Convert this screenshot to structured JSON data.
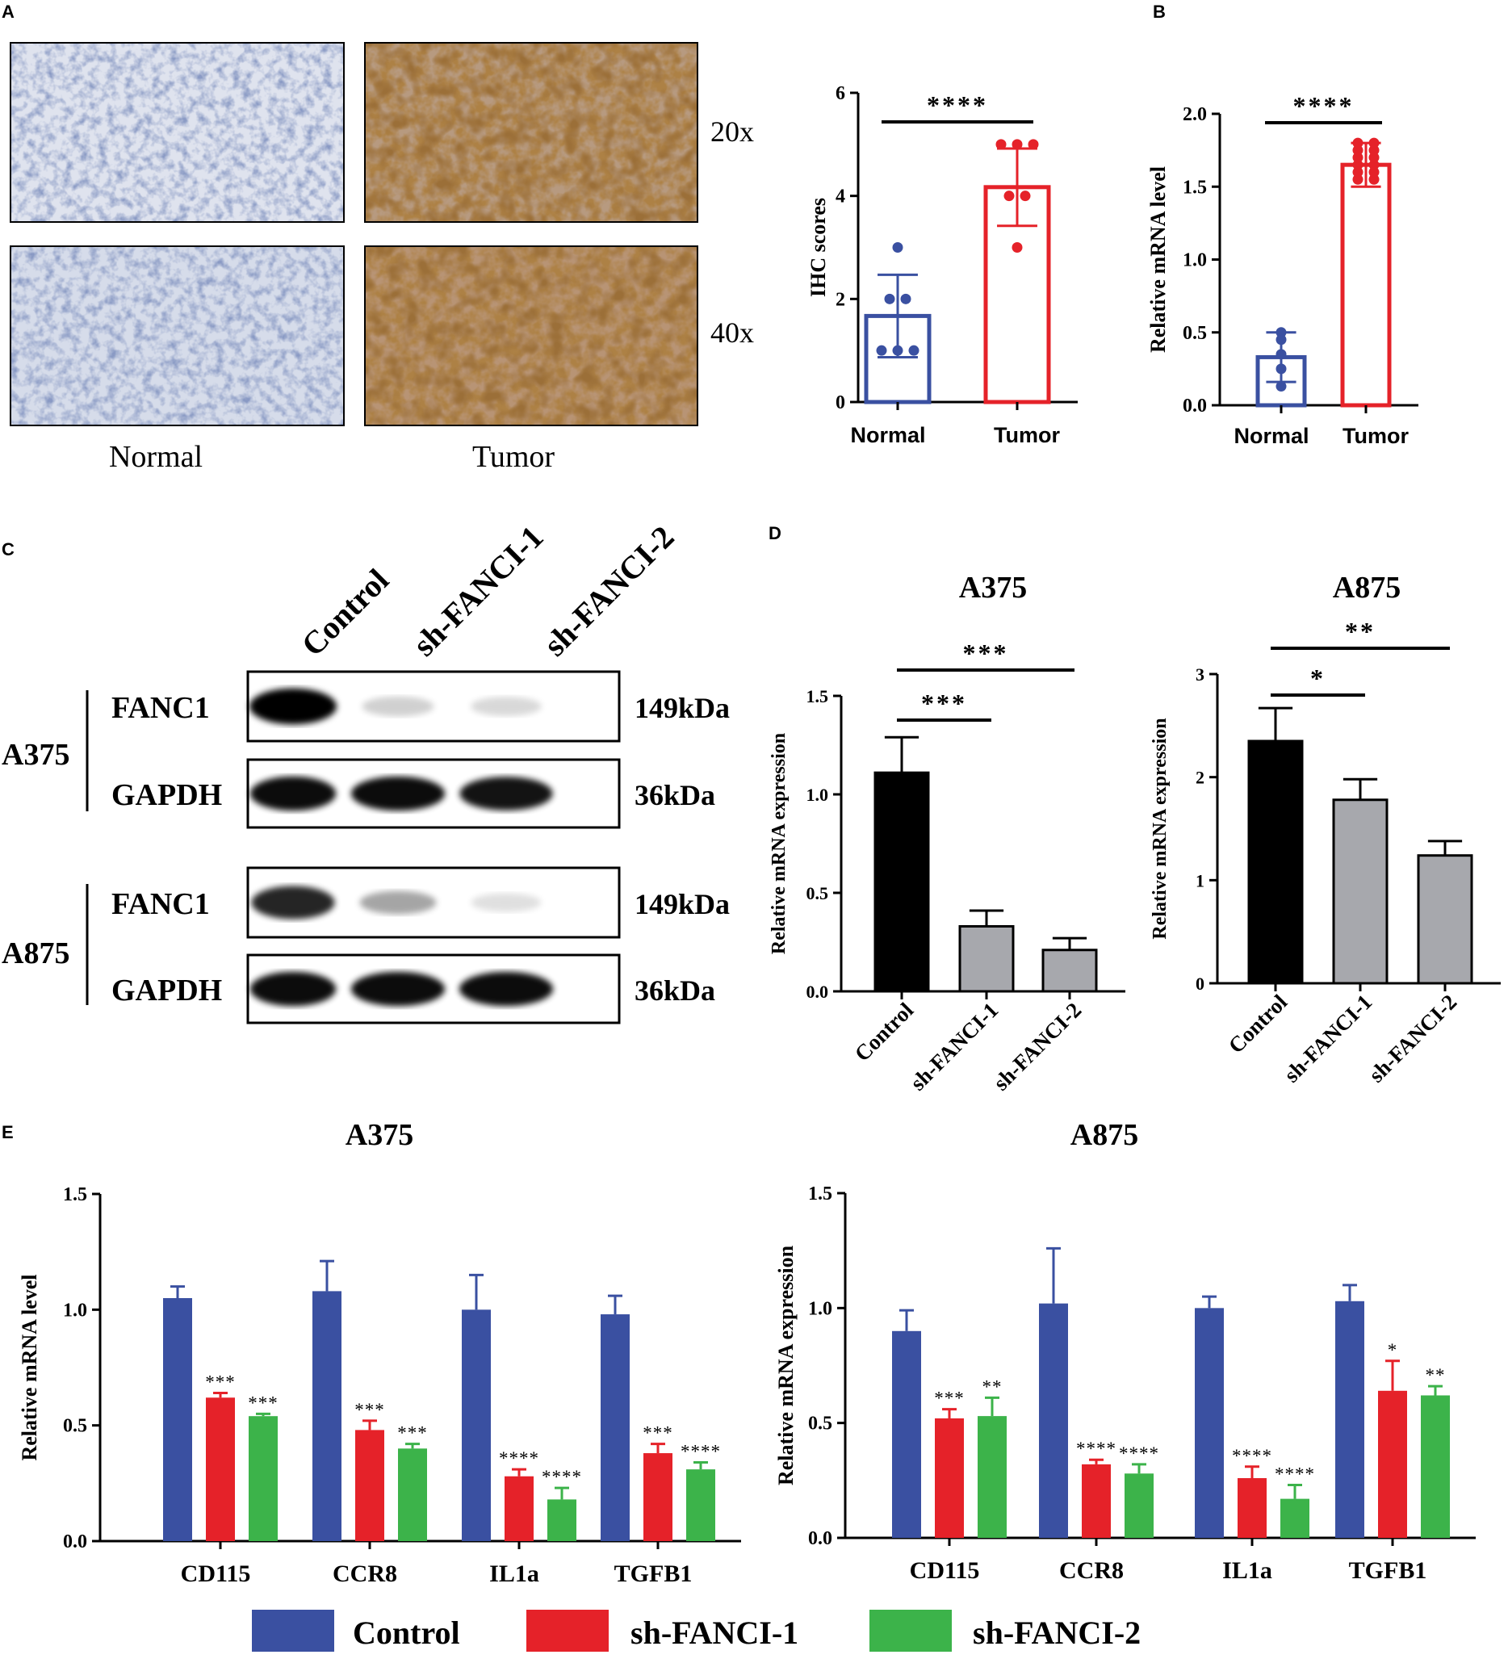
{
  "colors": {
    "blue": "#3a50a1",
    "red": "#e52229",
    "green": "#3cb34a",
    "black": "#000000",
    "grey": "#a7a8ad",
    "tissue_normal": "#c9cfe0",
    "tissue_tumor": "#8a5a2f"
  },
  "panel_A": {
    "letter": "A",
    "magnifications": [
      "20x",
      "40x"
    ],
    "group_labels": [
      "Normal",
      "Tumor"
    ]
  },
  "panel_B": {
    "letter": "B"
  },
  "panel_C": {
    "letter": "C",
    "lane_labels": [
      "Control",
      "sh-FANCI-1",
      "sh-FANCI-2"
    ],
    "cell_lines": [
      "A375",
      "A875"
    ],
    "blots": [
      {
        "protein": "FANC1",
        "size": "149kDa",
        "intensity": [
          1.0,
          0.18,
          0.15
        ]
      },
      {
        "protein": "GAPDH",
        "size": "36kDa",
        "intensity": [
          0.95,
          0.95,
          0.92
        ]
      },
      {
        "protein": "FANC1",
        "size": "149kDa",
        "intensity": [
          0.85,
          0.35,
          0.12
        ]
      },
      {
        "protein": "GAPDH",
        "size": "36kDa",
        "intensity": [
          0.95,
          0.95,
          0.95
        ]
      }
    ]
  },
  "panel_D": {
    "letter": "D"
  },
  "panel_E": {
    "letter": "E",
    "legend": [
      "Control",
      "sh-FANCI-1",
      "sh-FANCI-2"
    ]
  },
  "chart_data": [
    {
      "id": "A-ihc",
      "type": "bar",
      "categories": [
        "Normal",
        "Tumor"
      ],
      "values": [
        1.67,
        4.17
      ],
      "errors": [
        0.8,
        0.75
      ],
      "points": [
        [
          1,
          1,
          1,
          2,
          2,
          3
        ],
        [
          3,
          4,
          4,
          5,
          5,
          5
        ]
      ],
      "ylabel": "IHC scores",
      "ylim": [
        0,
        6
      ],
      "yticks": [
        "0",
        "2",
        "4",
        "6"
      ],
      "sig": [
        {
          "from": 0,
          "to": 1,
          "label": "****"
        }
      ],
      "bar_style": "outline"
    },
    {
      "id": "B-mrna",
      "type": "bar",
      "categories": [
        "Normal",
        "Tumor"
      ],
      "values": [
        0.33,
        1.65
      ],
      "errors": [
        0.17,
        0.15
      ],
      "points": [
        [
          0.5,
          0.45,
          0.35,
          0.25,
          0.13
        ],
        [
          1.55,
          1.55,
          1.6,
          1.6,
          1.65,
          1.65,
          1.7,
          1.7,
          1.75,
          1.75,
          1.8,
          1.8
        ]
      ],
      "ylabel": "Relative mRNA level",
      "ylim": [
        0,
        2.0
      ],
      "yticks": [
        "0.0",
        "0.5",
        "1.0",
        "1.5",
        "2.0"
      ],
      "sig": [
        {
          "from": 0,
          "to": 1,
          "label": "****"
        }
      ],
      "bar_style": "outline"
    },
    {
      "id": "D-A375",
      "type": "bar",
      "title": "A375",
      "categories": [
        "Control",
        "sh-FANCI-1",
        "sh-FANCI-2"
      ],
      "values": [
        1.11,
        0.33,
        0.21
      ],
      "errors": [
        0.18,
        0.08,
        0.06
      ],
      "ylabel": "Relative mRNA expression",
      "ylim": [
        0,
        1.5
      ],
      "yticks": [
        "0.0",
        "0.5",
        "1.0",
        "1.5"
      ],
      "sig": [
        {
          "from": 0,
          "to": 1,
          "label": "***"
        },
        {
          "from": 0,
          "to": 2,
          "label": "***"
        }
      ],
      "bar_style": "filled"
    },
    {
      "id": "D-A875",
      "type": "bar",
      "title": "A875",
      "categories": [
        "Control",
        "sh-FANCI-1",
        "sh-FANCI-2"
      ],
      "values": [
        2.35,
        1.78,
        1.24
      ],
      "errors": [
        0.32,
        0.2,
        0.14
      ],
      "ylabel": "Relative mRNA expression",
      "ylim": [
        0,
        3
      ],
      "yticks": [
        "0",
        "1",
        "2",
        "3"
      ],
      "sig": [
        {
          "from": 0,
          "to": 1,
          "label": "*"
        },
        {
          "from": 0,
          "to": 2,
          "label": "**"
        }
      ],
      "bar_style": "filled"
    },
    {
      "id": "E-A375",
      "type": "bar",
      "title": "A375",
      "categories": [
        "CD115",
        "CCR8",
        "IL1a",
        "TGFB1"
      ],
      "series": [
        {
          "name": "Control",
          "values": [
            1.05,
            1.08,
            1.0,
            0.98
          ],
          "errors": [
            0.05,
            0.13,
            0.15,
            0.08
          ],
          "stars": [
            "",
            "",
            "",
            ""
          ]
        },
        {
          "name": "sh-FANCI-1",
          "values": [
            0.62,
            0.48,
            0.28,
            0.38
          ],
          "errors": [
            0.02,
            0.04,
            0.03,
            0.04
          ],
          "stars": [
            "***",
            "***",
            "****",
            "***"
          ]
        },
        {
          "name": "sh-FANCI-2",
          "values": [
            0.54,
            0.4,
            0.18,
            0.31
          ],
          "errors": [
            0.01,
            0.02,
            0.05,
            0.03
          ],
          "stars": [
            "***",
            "***",
            "****",
            "****"
          ]
        }
      ],
      "ylabel": "Relative mRNA level",
      "ylim": [
        0,
        1.5
      ],
      "yticks": [
        "0.0",
        "0.5",
        "1.0",
        "1.5"
      ]
    },
    {
      "id": "E-A875",
      "type": "bar",
      "title": "A875",
      "categories": [
        "CD115",
        "CCR8",
        "IL1a",
        "TGFB1"
      ],
      "series": [
        {
          "name": "Control",
          "values": [
            0.9,
            1.02,
            1.0,
            1.03
          ],
          "errors": [
            0.09,
            0.24,
            0.05,
            0.07
          ],
          "stars": [
            "",
            "",
            "",
            ""
          ]
        },
        {
          "name": "sh-FANCI-1",
          "values": [
            0.52,
            0.32,
            0.26,
            0.64
          ],
          "errors": [
            0.04,
            0.02,
            0.05,
            0.13
          ],
          "stars": [
            "***",
            "****",
            "****",
            "*"
          ]
        },
        {
          "name": "sh-FANCI-2",
          "values": [
            0.53,
            0.28,
            0.17,
            0.62
          ],
          "errors": [
            0.08,
            0.04,
            0.06,
            0.04
          ],
          "stars": [
            "**",
            "****",
            "****",
            "**"
          ]
        }
      ],
      "ylabel": "Relative mRNA expression",
      "ylim": [
        0,
        1.5
      ],
      "yticks": [
        "0.0",
        "0.5",
        "1.0",
        "1.5"
      ]
    }
  ]
}
